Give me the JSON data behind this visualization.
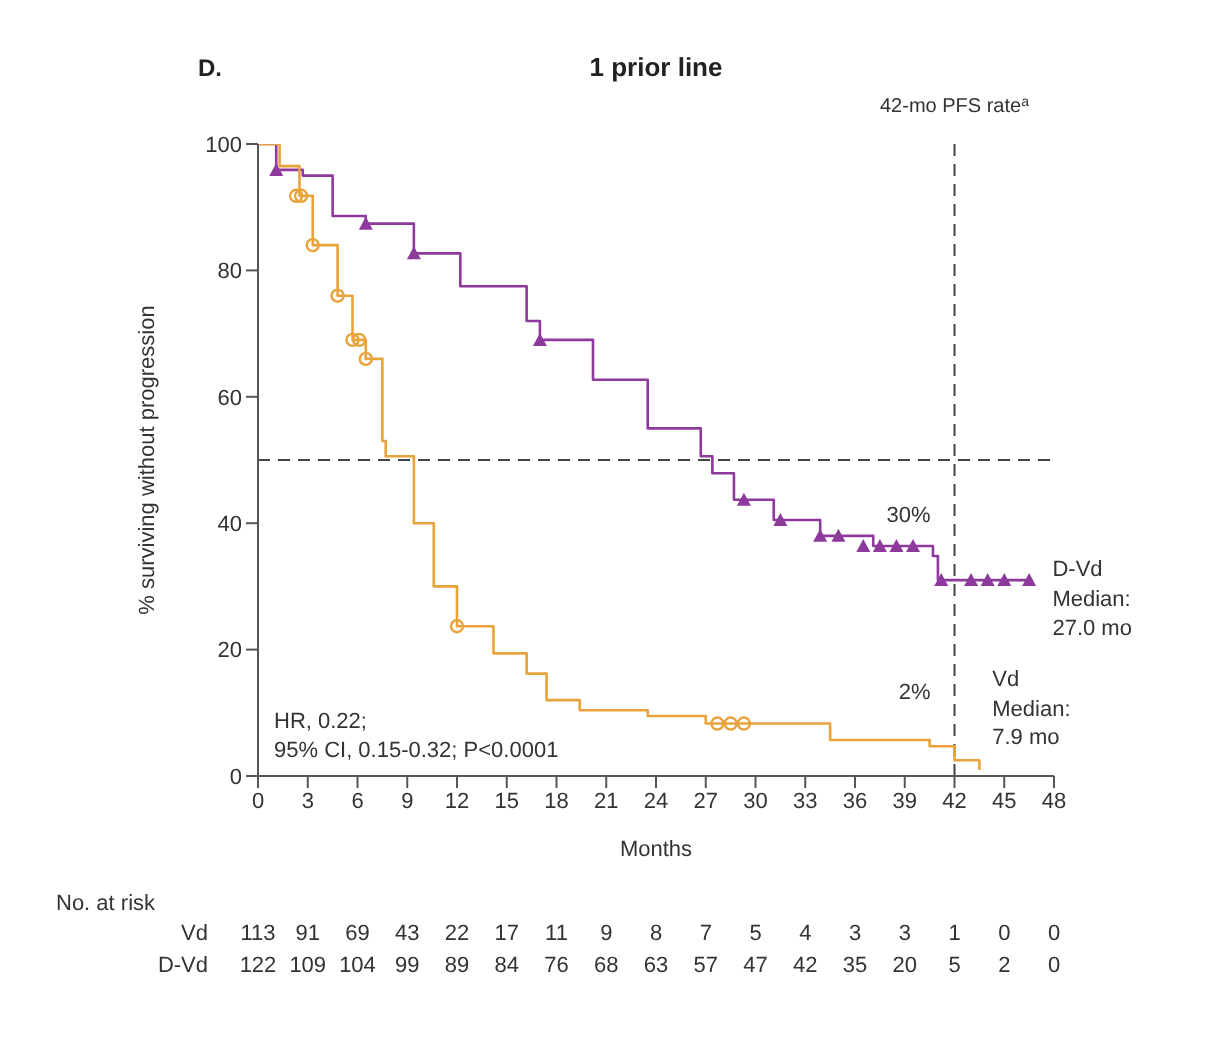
{
  "chart_data": {
    "type": "step",
    "title": "1 prior line",
    "xlabel": "Months",
    "ylabel": "% surviving without progression",
    "xlim": [
      0,
      48
    ],
    "xticks": [
      0,
      3,
      6,
      9,
      12,
      15,
      18,
      21,
      24,
      27,
      30,
      33,
      36,
      39,
      42,
      45,
      48
    ],
    "ylim": [
      0,
      100
    ],
    "yticks": [
      0,
      20,
      40,
      60,
      80,
      100
    ],
    "series": [
      {
        "name": "D-Vd",
        "color": "#8e3a9d",
        "x": [
          0,
          1.1,
          2.7,
          4.5,
          6.5,
          9.4,
          12.2,
          16.2,
          17,
          20.2,
          23.5,
          26.7,
          27.4,
          28.7,
          31.1,
          33.9,
          37.1,
          40.7,
          41,
          46.7
        ],
        "values": [
          100,
          95.9,
          95,
          88.6,
          87.4,
          82.7,
          77.5,
          72,
          69,
          62.7,
          55,
          50.6,
          47.9,
          43.7,
          40.5,
          38,
          36.4,
          34.8,
          31,
          31
        ]
      },
      {
        "name": "Vd",
        "color": "#e8a33a",
        "x": [
          0,
          1.3,
          2.5,
          3.3,
          4.8,
          5.7,
          6.5,
          7.5,
          7.7,
          9.4,
          10.6,
          12,
          14.2,
          16.2,
          17.4,
          19.4,
          23.5,
          27,
          34.5,
          40.5,
          42,
          43.5
        ],
        "values": [
          100,
          96.5,
          91.8,
          84,
          76,
          69,
          66,
          53,
          50.6,
          40,
          30,
          23.7,
          19.4,
          16.2,
          12,
          10.4,
          9.5,
          8.3,
          5.7,
          4.7,
          2.5,
          1
        ]
      },
      {
        "type": "scatter",
        "marker": "triangle",
        "color": "#8e3a9d",
        "x": [
          1.1,
          6.5,
          9.4,
          17,
          29.3,
          31.5,
          33.9,
          35,
          36.5,
          37.5,
          38.5,
          39.5,
          41.2,
          43,
          44,
          45,
          46.5
        ],
        "values": [
          95.9,
          87.4,
          82.7,
          69,
          43.7,
          40.5,
          38,
          38,
          36.4,
          36.4,
          36.4,
          36.4,
          31,
          31,
          31,
          31,
          31
        ]
      },
      {
        "type": "scatter",
        "marker": "circle",
        "color": "#e8a33a",
        "x": [
          2.3,
          2.6,
          3.3,
          4.8,
          5.7,
          6.1,
          6.5,
          12,
          27.7,
          28.5,
          29.3
        ],
        "values": [
          91.8,
          91.8,
          84,
          76,
          69,
          69,
          66,
          23.7,
          8.3,
          8.3,
          8.3
        ]
      }
    ],
    "ref_lines": [
      {
        "axis": "x",
        "value": 42,
        "label": "42-mo PFS rate$^{a}$",
        "color": "#444444",
        "line_style": "dashed"
      },
      {
        "axis": "y",
        "value": 50,
        "color": "#444444",
        "line_style": "dashed"
      }
    ],
    "annotations": [
      "D.",
      "HR, 0.22;\n95% CI, 0.15-0.32; P<0.0001",
      {
        "text": "30%",
        "x": 42,
        "y": 30
      },
      {
        "text": "2%",
        "x": 42,
        "y": 2
      },
      "Median:\n27.0 mo",
      "Median:\n7.9 mo",
      "No. at risk",
      "113 91 69 43 22 17 11 9 8 7 5 4 3 3 1 0 0",
      "122 109 104 99 89 84 76 68 63 57 47 42 35 20 5 2 0"
    ]
  }
}
